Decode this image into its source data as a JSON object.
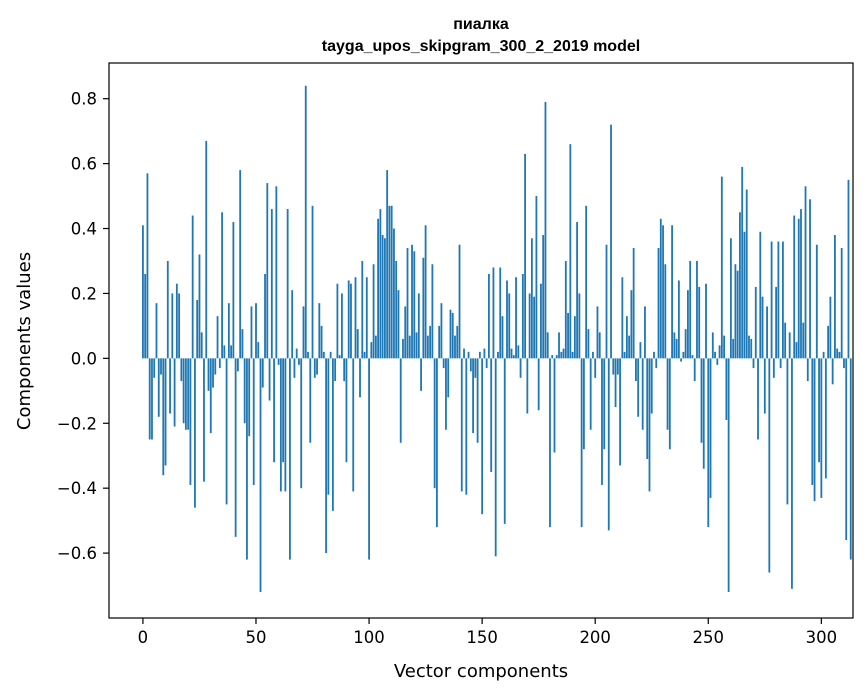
{
  "chart_data": {
    "type": "bar",
    "title": "пиалка",
    "subtitle": "tayga_upos_skipgram_300_2_2019 model",
    "xlabel": "Vector components",
    "ylabel": "Components values",
    "xlim": [
      -15,
      314
    ],
    "ylim": [
      -0.8,
      0.91
    ],
    "xticks": [
      0,
      50,
      100,
      150,
      200,
      250,
      300
    ],
    "xtick_labels": [
      "0",
      "50",
      "100",
      "150",
      "200",
      "250",
      "300"
    ],
    "yticks": [
      -0.6,
      -0.4,
      -0.2,
      0.0,
      0.2,
      0.4,
      0.6,
      0.8
    ],
    "ytick_labels": [
      "−0.6",
      "−0.4",
      "−0.2",
      "0.0",
      "0.2",
      "0.4",
      "0.6",
      "0.8"
    ],
    "grid": false,
    "bar_color": "#1f77b4",
    "values": [
      0.41,
      0.26,
      0.57,
      -0.25,
      -0.25,
      -0.06,
      0.17,
      -0.18,
      -0.05,
      -0.36,
      -0.33,
      0.3,
      -0.17,
      0.2,
      -0.21,
      0.23,
      0.2,
      -0.07,
      -0.2,
      -0.22,
      -0.22,
      -0.39,
      0.44,
      -0.46,
      0.18,
      0.32,
      0.08,
      -0.38,
      0.67,
      -0.1,
      -0.23,
      -0.09,
      -0.05,
      0.13,
      -0.03,
      0.45,
      0.04,
      -0.45,
      0.17,
      0.04,
      0.42,
      -0.55,
      -0.04,
      0.58,
      0.09,
      -0.2,
      -0.62,
      -0.24,
      0.16,
      -0.39,
      0.17,
      0.05,
      -0.72,
      -0.09,
      0.26,
      0.54,
      -0.13,
      0.46,
      -0.32,
      0.53,
      -0.02,
      -0.41,
      -0.32,
      -0.41,
      0.46,
      -0.62,
      0.21,
      -0.06,
      0.03,
      -0.02,
      -0.4,
      0.16,
      0.84,
      0.02,
      -0.26,
      0.47,
      -0.06,
      -0.05,
      0.17,
      0.1,
      0.02,
      -0.6,
      -0.42,
      0.02,
      -0.47,
      -0.07,
      0.23,
      0.01,
      0.2,
      -0.07,
      -0.32,
      0.24,
      0.23,
      -0.41,
      0.25,
      0.09,
      -0.12,
      0.3,
      0.02,
      0.25,
      -0.62,
      0.05,
      0.29,
      0.07,
      0.43,
      0.46,
      0.38,
      0.37,
      0.58,
      0.47,
      0.47,
      0.4,
      0.3,
      0.21,
      -0.26,
      0.06,
      0.16,
      0.34,
      0.07,
      0.35,
      0.33,
      0.08,
      0.2,
      -0.1,
      0.31,
      0.41,
      0.07,
      0.1,
      0.29,
      -0.4,
      -0.52,
      0.1,
      0.17,
      -0.03,
      -0.22,
      -0.12,
      0.15,
      0.14,
      0.07,
      0.1,
      0.35,
      -0.41,
      0.03,
      -0.42,
      0.02,
      -0.04,
      -0.23,
      -0.06,
      -0.26,
      0.02,
      -0.48,
      0.03,
      -0.03,
      0.26,
      -0.35,
      0.28,
      -0.61,
      0.02,
      0.28,
      0.13,
      -0.51,
      0.24,
      0.2,
      0.03,
      0.01,
      0.25,
      0.04,
      -0.06,
      0.26,
      0.63,
      -0.17,
      0.2,
      0.37,
      0.19,
      0.5,
      -0.16,
      0.23,
      0.38,
      0.79,
      0.08,
      -0.52,
      0.01,
      -0.29,
      0.01,
      0.08,
      0.02,
      0.03,
      0.3,
      0.14,
      0.66,
      0.02,
      0.13,
      0.42,
      0.2,
      -0.52,
      -0.28,
      0.47,
      0.09,
      -0.22,
      0.02,
      -0.06,
      0.16,
      0.08,
      -0.39,
      -0.28,
      0.35,
      -0.53,
      0.72,
      -0.05,
      -0.15,
      -0.05,
      -0.33,
      0.25,
      0.02,
      0.13,
      0.07,
      0.21,
      0.34,
      -0.07,
      -0.18,
      0.05,
      -0.22,
      0.16,
      -0.31,
      -0.41,
      -0.17,
      0.02,
      -0.03,
      0.34,
      0.43,
      0.41,
      0.29,
      -0.22,
      -0.28,
      0.41,
      0.08,
      0.06,
      0.24,
      -0.01,
      0.02,
      0.09,
      0.21,
      0.3,
      0.01,
      -0.07,
      0.3,
      0.22,
      -0.26,
      -0.34,
      0.23,
      -0.52,
      -0.43,
      0.08,
      0.02,
      -0.02,
      0.04,
      0.56,
      0.07,
      -0.19,
      -0.72,
      0.37,
      0.06,
      0.29,
      0.27,
      0.45,
      0.59,
      0.39,
      0.52,
      0.07,
      0.06,
      -0.03,
      0.22,
      -0.25,
      0.39,
      0.19,
      -0.17,
      0.16,
      -0.66,
      0.36,
      -0.06,
      0.22,
      0.36,
      -0.03,
      0.36,
      0.11,
      -0.45,
      0.08,
      -0.71,
      0.44,
      0.05,
      0.43,
      0.46,
      0.11,
      0.53,
      -0.07,
      0.49,
      -0.39,
      -0.44,
      0.35,
      -0.32,
      -0.43,
      0.02,
      -0.37,
      0.1,
      0.19,
      -0.08,
      0.38,
      0.03,
      0.02,
      0.34,
      -0.03,
      -0.56,
      0.55,
      -0.62
    ]
  }
}
